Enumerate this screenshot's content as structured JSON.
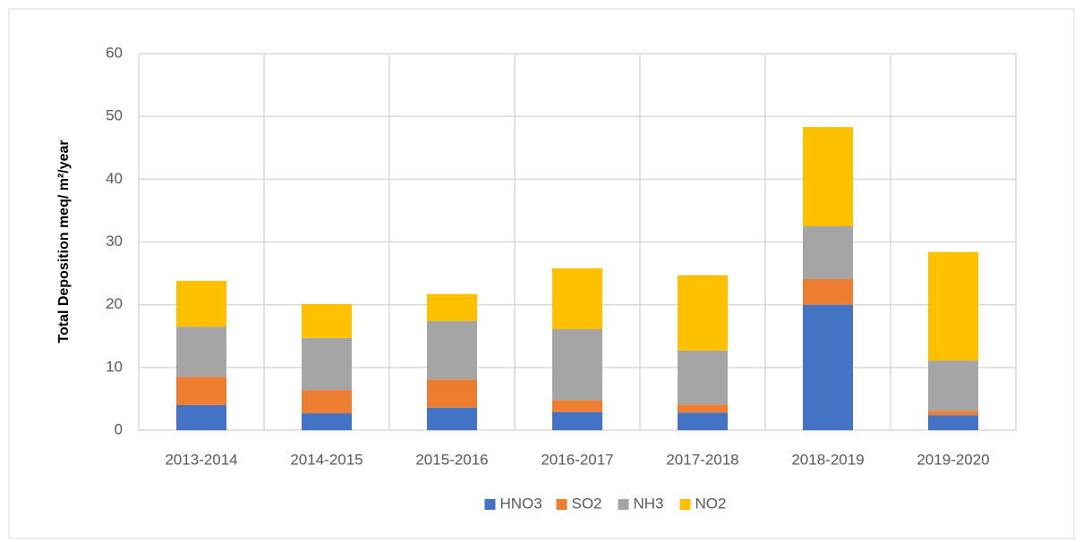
{
  "chart_data": {
    "type": "stacked_bar",
    "y_label": "Total  Deposition meq/ m²/year",
    "categories": [
      "2013-2014",
      "2014-2015",
      "2015-2016",
      "2016-2017",
      "2017-2018",
      "2018-2019",
      "2019-2020"
    ],
    "series": [
      {
        "name": "HNO3",
        "color": "#4472c4",
        "values": [
          4.0,
          2.7,
          3.6,
          2.9,
          2.8,
          20.0,
          2.4
        ]
      },
      {
        "name": "SO2",
        "color": "#ed7d31",
        "values": [
          4.5,
          3.7,
          4.5,
          1.9,
          1.3,
          4.1,
          0.7
        ]
      },
      {
        "name": "NH3",
        "color": "#a5a5a5",
        "values": [
          8.0,
          8.3,
          9.3,
          11.3,
          8.6,
          8.4,
          8.0
        ]
      },
      {
        "name": "NO2",
        "color": "#ffc000",
        "values": [
          7.3,
          5.4,
          4.3,
          9.7,
          12.0,
          15.8,
          17.3
        ]
      }
    ],
    "ylim": [
      0,
      60
    ],
    "yticks": [
      0,
      10,
      20,
      30,
      40,
      50,
      60
    ],
    "grid": true,
    "legend": "bottom"
  }
}
